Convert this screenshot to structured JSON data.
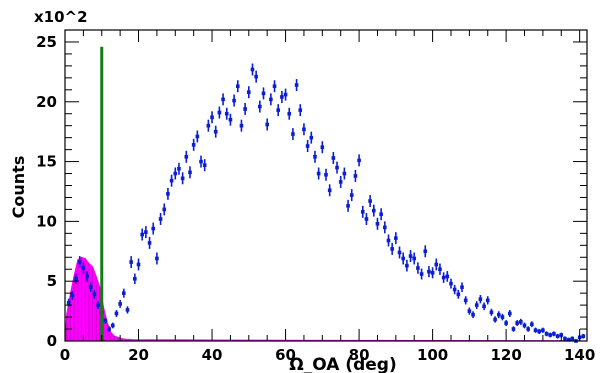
{
  "chart_data": {
    "type": "scatter",
    "title": "",
    "xlabel": "Ω_OA (deg)",
    "ylabel": "Counts",
    "y_multiplier": "x10^2",
    "xlim": [
      0,
      142
    ],
    "ylim": [
      0,
      26
    ],
    "x_ticks": [
      0,
      20,
      40,
      60,
      80,
      100,
      120,
      140
    ],
    "y_ticks": [
      0,
      5,
      10,
      15,
      20,
      25
    ],
    "grid": false,
    "legend": "none",
    "colors": {
      "data": "#0a1ed8",
      "signal": "#ff00ff",
      "cut": "#137d13",
      "axis": "#000000"
    },
    "cut_line": {
      "x": 10,
      "y_top": 24.6
    },
    "series": [
      {
        "style": "points-with-error-bars",
        "x": [
          1,
          2,
          3,
          4,
          5,
          6,
          7,
          8,
          9,
          10,
          11,
          12,
          13,
          14,
          15,
          16,
          17,
          18,
          19,
          20,
          21,
          22,
          23,
          24,
          25,
          26,
          27,
          28,
          29,
          30,
          31,
          32,
          33,
          34,
          35,
          36,
          37,
          38,
          39,
          40,
          41,
          42,
          43,
          44,
          45,
          46,
          47,
          48,
          49,
          50,
          51,
          52,
          53,
          54,
          55,
          56,
          57,
          58,
          59,
          60,
          61,
          62,
          63,
          64,
          65,
          66,
          67,
          68,
          69,
          70,
          71,
          72,
          73,
          74,
          75,
          76,
          77,
          78,
          79,
          80,
          81,
          82,
          83,
          84,
          85,
          86,
          87,
          88,
          89,
          90,
          91,
          92,
          93,
          94,
          95,
          96,
          97,
          98,
          99,
          100,
          101,
          102,
          103,
          104,
          105,
          106,
          107,
          108,
          109,
          110,
          111,
          112,
          113,
          114,
          115,
          116,
          117,
          118,
          119,
          120,
          121,
          122,
          123,
          124,
          125,
          126,
          127,
          128,
          129,
          130,
          131,
          132,
          133,
          134,
          135,
          136,
          137,
          138,
          139,
          140,
          141
        ],
        "y": [
          3.2,
          3.8,
          5.2,
          6.6,
          6.1,
          5.4,
          4.5,
          3.9,
          3.0,
          2.4,
          1.7,
          1.0,
          1.3,
          2.3,
          3.1,
          4.0,
          2.6,
          6.6,
          5.2,
          6.4,
          8.9,
          9.1,
          8.2,
          9.4,
          6.9,
          10.2,
          11.0,
          12.3,
          13.4,
          14.0,
          14.4,
          13.6,
          15.4,
          14.1,
          16.4,
          17.1,
          15.0,
          14.7,
          18.0,
          18.7,
          17.5,
          19.1,
          20.2,
          19.0,
          18.5,
          20.1,
          21.3,
          18.0,
          19.4,
          20.8,
          22.7,
          22.1,
          19.6,
          20.7,
          18.1,
          20.2,
          21.3,
          19.3,
          20.4,
          20.6,
          19.0,
          17.3,
          21.4,
          19.3,
          17.7,
          16.3,
          17.0,
          15.4,
          14.0,
          16.2,
          13.9,
          12.6,
          15.3,
          14.5,
          13.3,
          14.0,
          11.3,
          12.2,
          13.8,
          15.1,
          10.8,
          10.2,
          11.7,
          10.9,
          9.8,
          10.6,
          9.5,
          8.4,
          7.7,
          8.6,
          7.4,
          6.9,
          6.3,
          7.1,
          6.9,
          6.1,
          5.6,
          7.5,
          5.8,
          5.7,
          6.4,
          6.0,
          5.3,
          5.4,
          4.8,
          4.3,
          3.9,
          4.5,
          3.4,
          2.5,
          2.2,
          3.0,
          3.5,
          2.9,
          3.4,
          2.4,
          1.8,
          2.2,
          2.0,
          1.5,
          2.3,
          1.0,
          1.5,
          1.6,
          1.3,
          1.0,
          1.4,
          0.9,
          0.8,
          0.9,
          0.6,
          0.5,
          0.6,
          0.4,
          0.5,
          0.2,
          0.1,
          0.2,
          0.0,
          0.3,
          0.4
        ],
        "y_error": 0.5
      },
      {
        "style": "filled-histogram",
        "x": [
          0.5,
          1.5,
          2.5,
          3.5,
          4.5,
          5.5,
          6.5,
          7.5,
          8.5,
          9.5,
          10.5,
          11.5,
          12.5,
          13.5,
          14.5,
          15.5,
          16.5,
          18.5,
          22.5,
          30,
          40,
          60,
          80,
          100,
          120,
          140
        ],
        "y": [
          2.3,
          4.0,
          5.5,
          6.8,
          7.0,
          6.9,
          6.5,
          6.2,
          5.4,
          4.5,
          2.8,
          1.5,
          0.7,
          0.4,
          0.3,
          0.2,
          0.15,
          0.12,
          0.1,
          0.1,
          0.08,
          0.06,
          0.05,
          0.04,
          0.03,
          0.02
        ]
      }
    ]
  }
}
